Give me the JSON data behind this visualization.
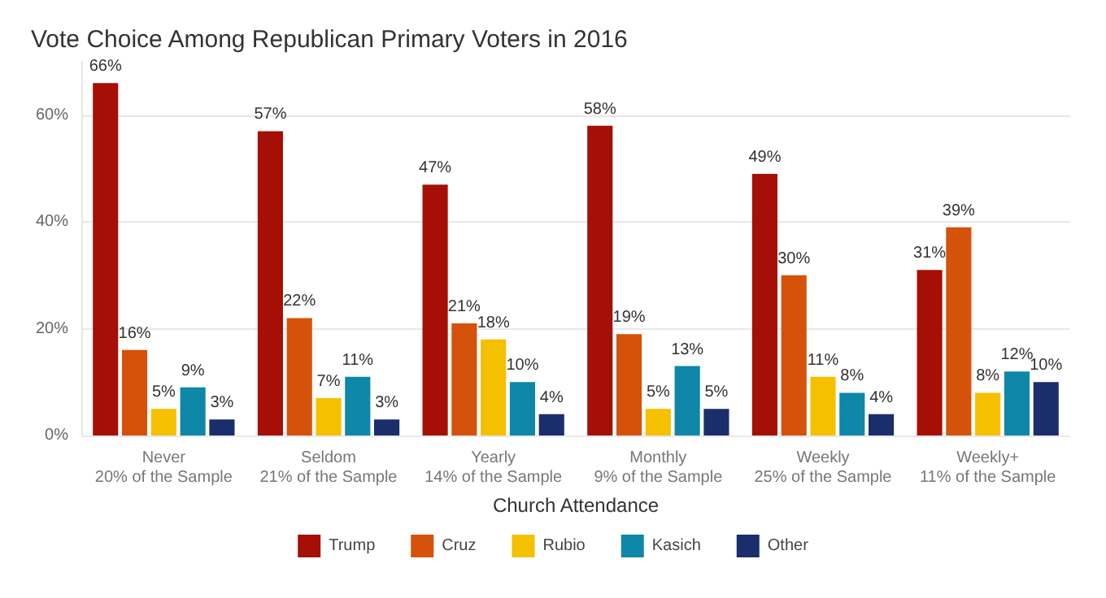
{
  "chart_data": {
    "type": "bar",
    "title": "Vote Choice Among Republican Primary Voters in 2016",
    "xlabel": "Church Attendance",
    "categories": [
      "Never\n20% of the Sample",
      "Seldom\n21% of the Sample",
      "Yearly\n14% of the Sample",
      "Monthly\n9% of the Sample",
      "Weekly\n25% of the Sample",
      "Weekly+\n11% of the Sample"
    ],
    "series": [
      {
        "name": "Trump",
        "color": "#a50f05",
        "values": [
          66,
          57,
          47,
          58,
          49,
          31
        ],
        "value_labels": [
          "66%",
          "57%",
          "47%",
          "58%",
          "49%",
          "31%"
        ]
      },
      {
        "name": "Cruz",
        "color": "#d4520a",
        "values": [
          16,
          22,
          21,
          19,
          30,
          39
        ],
        "value_labels": [
          "16%",
          "22%",
          "21%",
          "19%",
          "30%",
          "39%"
        ]
      },
      {
        "name": "Rubio",
        "color": "#f5c000",
        "values": [
          5,
          7,
          18,
          5,
          11,
          8
        ],
        "value_labels": [
          "5%",
          "7%",
          "18%",
          "5%",
          "11%",
          "8%"
        ]
      },
      {
        "name": "Kasich",
        "color": "#0e87a8",
        "values": [
          9,
          11,
          10,
          13,
          8,
          12
        ],
        "value_labels": [
          "9%",
          "11%",
          "10%",
          "13%",
          "8%",
          "12%"
        ]
      },
      {
        "name": "Other",
        "color": "#1a2e6b",
        "values": [
          3,
          3,
          4,
          5,
          4,
          10
        ],
        "value_labels": [
          "3%",
          "3%",
          "4%",
          "5%",
          "4%",
          "10%"
        ]
      }
    ],
    "ylim": [
      0,
      70
    ],
    "yticks": [
      {
        "value": 0,
        "label": "0%"
      },
      {
        "value": 20,
        "label": "20%"
      },
      {
        "value": 40,
        "label": "40%"
      },
      {
        "value": 60,
        "label": "60%"
      }
    ],
    "grid": "y",
    "legend": "bottom"
  }
}
